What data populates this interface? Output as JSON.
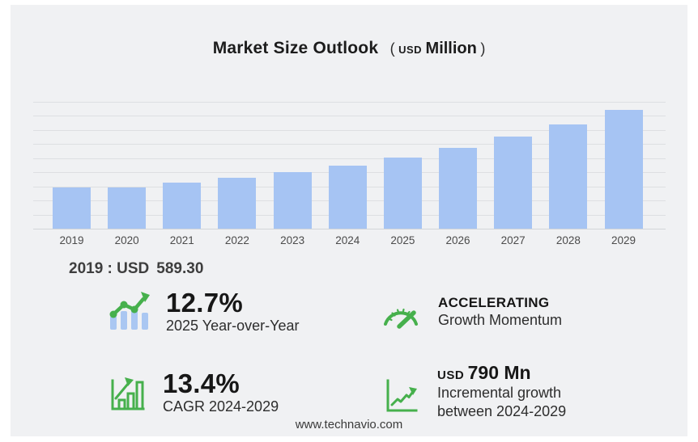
{
  "title": {
    "main": "Market Size Outlook",
    "paren_open": "(",
    "unit_small": "USD",
    "unit_big": "Million",
    "paren_close": ")"
  },
  "chart_data": {
    "type": "bar",
    "title": "Market Size Outlook (USD Million)",
    "categories": [
      "2019",
      "2020",
      "2021",
      "2022",
      "2023",
      "2024",
      "2025",
      "2026",
      "2027",
      "2028",
      "2029"
    ],
    "values": [
      589.3,
      582,
      652,
      722,
      804,
      900,
      1014,
      1150,
      1303,
      1478,
      1690
    ],
    "xlabel": "",
    "ylabel": "",
    "ylim": [
      0,
      1800
    ],
    "gridline_interval": 200,
    "y_tick_labels_visible": false,
    "grid": true,
    "legend": false,
    "bar_color": "#a6c4f3",
    "annotation": "2019 : USD 589.30"
  },
  "annotation": {
    "label": "2019 : USD",
    "value": "589.30"
  },
  "stats": [
    {
      "icon": "bars-trendline-icon",
      "value": "12.7%",
      "label": "2025 Year-over-Year"
    },
    {
      "icon": "bar-chart-arrow-icon",
      "value": "13.4%",
      "label": "CAGR 2024-2029"
    },
    {
      "icon": "speedometer-icon",
      "value": "ACCELERATING",
      "label": "Growth Momentum"
    },
    {
      "icon": "line-growth-icon",
      "value_prefix": "USD",
      "value": "790 Mn",
      "label": "Incremental growth",
      "label2": "between 2024-2029"
    }
  ],
  "footer": {
    "website": "www.technavio.com"
  },
  "colors": {
    "bar": "#a6c4f3",
    "icon_green": "#46b04c",
    "icon_blue": "#aac7f2",
    "card_bg": "#f0f1f3",
    "gridline": "#dddfe2"
  }
}
